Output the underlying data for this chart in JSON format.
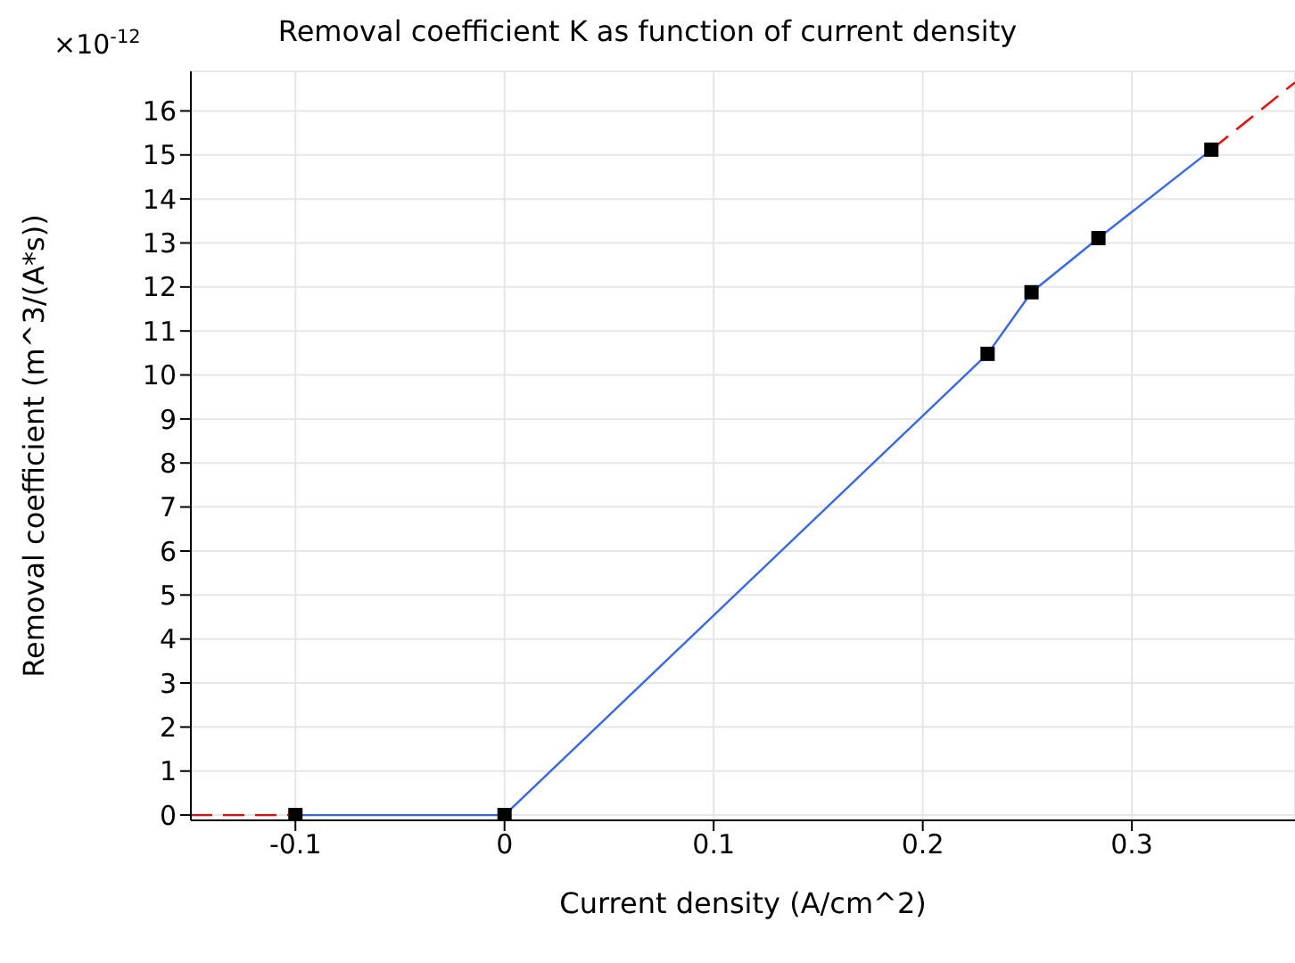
{
  "chart_data": {
    "type": "line",
    "title": "Removal coefficient K as function of current density",
    "xlabel": "Current density (A/cm^2)",
    "ylabel": "Removal coefficient (m^3/(A*s))",
    "annotations": [
      "×10$^{-12}$"
    ],
    "xlim": [
      -0.15,
      0.378
    ],
    "xticks": [
      -0.1,
      0,
      0.1,
      0.2,
      0.3
    ],
    "ylim": [
      -0.12,
      16.9
    ],
    "yticks": [
      0,
      1,
      2,
      3,
      4,
      5,
      6,
      7,
      8,
      9,
      10,
      11,
      12,
      13,
      14,
      15,
      16
    ],
    "grid": true,
    "series": [
      {
        "color": "#ff0000",
        "line_style": "dashed",
        "x": [
          -0.15,
          -0.1
        ],
        "values": [
          0,
          0
        ]
      },
      {
        "color": "#ff0000",
        "line_style": "dashed",
        "x": [
          0.338,
          0.378
        ],
        "values": [
          15.12,
          16.65
        ]
      },
      {
        "color": "#3366ff",
        "line_style": "solid",
        "marker": "square",
        "x": [
          -0.1,
          0,
          0.231,
          0.252,
          0.284,
          0.338
        ],
        "values": [
          0,
          0,
          10.48,
          11.88,
          13.11,
          15.12
        ]
      }
    ]
  }
}
